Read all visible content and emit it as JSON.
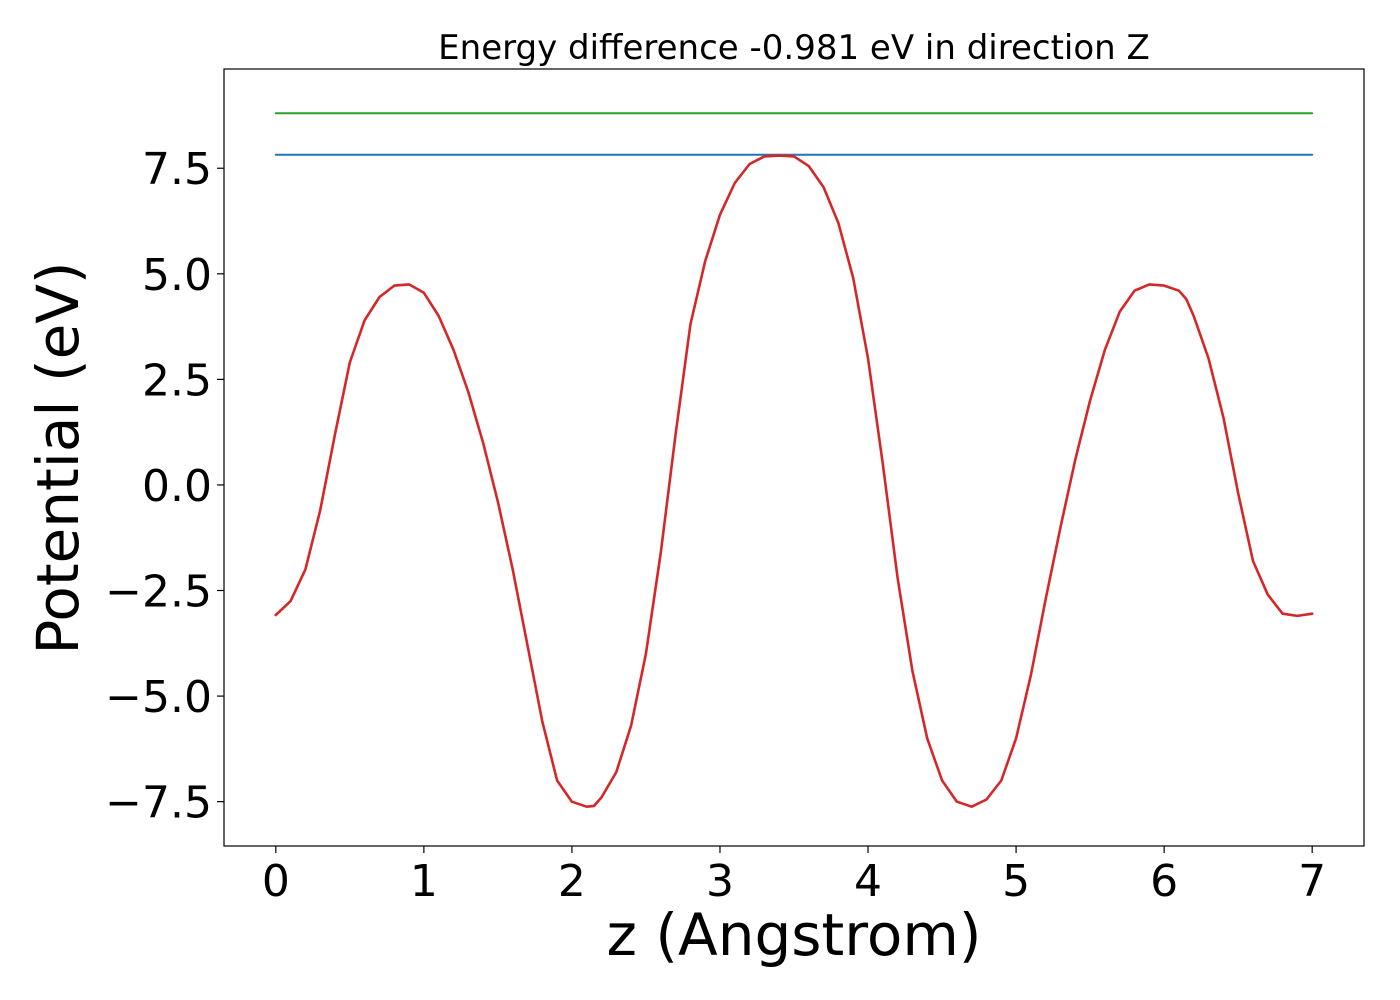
{
  "chart_data": {
    "type": "line",
    "title": "Energy difference -0.981 eV in direction Z",
    "xlabel": "z (Angstrom)",
    "ylabel": "Potential (eV)",
    "xlim": [
      -0.35,
      7.35
    ],
    "ylim": [
      -8.55,
      9.85
    ],
    "xticks": [
      0,
      1,
      2,
      3,
      4,
      5,
      6,
      7
    ],
    "xtick_labels": [
      "0",
      "1",
      "2",
      "3",
      "4",
      "5",
      "6",
      "7"
    ],
    "yticks": [
      -7.5,
      -5.0,
      -2.5,
      0.0,
      2.5,
      5.0,
      7.5
    ],
    "ytick_labels": [
      "−7.5",
      "−5.0",
      "−2.5",
      "0.0",
      "2.5",
      "5.0",
      "7.5"
    ],
    "grid": false,
    "legend": "none",
    "series": [
      {
        "color": "#2ca02c",
        "x": [
          0,
          7
        ],
        "y": [
          8.8,
          8.8
        ]
      },
      {
        "color": "#1f77b4",
        "x": [
          0,
          7
        ],
        "y": [
          7.82,
          7.82
        ]
      },
      {
        "color": "#d62728",
        "x": [
          0,
          0.1,
          0.2,
          0.3,
          0.4,
          0.5,
          0.6,
          0.7,
          0.8,
          0.9,
          1.0,
          1.1,
          1.2,
          1.3,
          1.4,
          1.5,
          1.6,
          1.7,
          1.8,
          1.9,
          2.0,
          2.1,
          2.15,
          2.2,
          2.3,
          2.4,
          2.5,
          2.6,
          2.7,
          2.8,
          2.9,
          3.0,
          3.1,
          3.2,
          3.3,
          3.4,
          3.5,
          3.6,
          3.7,
          3.8,
          3.9,
          4.0,
          4.1,
          4.2,
          4.3,
          4.4,
          4.5,
          4.6,
          4.7,
          4.8,
          4.9,
          5.0,
          5.1,
          5.2,
          5.3,
          5.4,
          5.5,
          5.6,
          5.7,
          5.8,
          5.9,
          6.0,
          6.1,
          6.15,
          6.2,
          6.3,
          6.4,
          6.5,
          6.6,
          6.7,
          6.8,
          6.9,
          7.0
        ],
        "y": [
          -3.08,
          -2.75,
          -2.0,
          -0.6,
          1.2,
          2.9,
          3.9,
          4.45,
          4.72,
          4.75,
          4.55,
          4.0,
          3.2,
          2.2,
          1.0,
          -0.4,
          -2.0,
          -3.8,
          -5.6,
          -7.0,
          -7.5,
          -7.62,
          -7.6,
          -7.4,
          -6.8,
          -5.7,
          -4.0,
          -1.6,
          1.2,
          3.8,
          5.3,
          6.4,
          7.15,
          7.6,
          7.78,
          7.8,
          7.78,
          7.55,
          7.05,
          6.2,
          4.9,
          3.0,
          0.5,
          -2.2,
          -4.4,
          -6.0,
          -7.0,
          -7.5,
          -7.62,
          -7.45,
          -7.0,
          -6.0,
          -4.5,
          -2.7,
          -1.0,
          0.6,
          2.0,
          3.2,
          4.1,
          4.6,
          4.75,
          4.72,
          4.6,
          4.4,
          4.0,
          3.0,
          1.6,
          -0.2,
          -1.8,
          -2.6,
          -3.05,
          -3.1,
          -3.05
        ]
      }
    ]
  }
}
